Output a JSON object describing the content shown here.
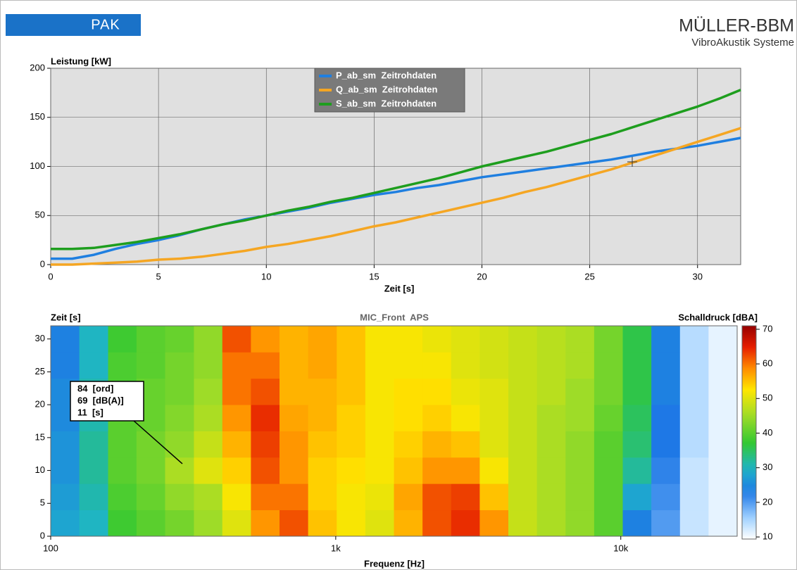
{
  "header": {
    "logo": "PAK",
    "brand": "MÜLLER-BBM",
    "subtitle": "VibroAkustik Systeme"
  },
  "chart_data": [
    {
      "type": "line",
      "ylabel": "Leistung [kW]",
      "xlabel": "Zeit [s]",
      "x": [
        0,
        1,
        2,
        3,
        4,
        5,
        6,
        7,
        8,
        9,
        10,
        11,
        12,
        13,
        14,
        15,
        16,
        17,
        18,
        19,
        20,
        21,
        22,
        23,
        24,
        25,
        26,
        27,
        28,
        29,
        30,
        31,
        32
      ],
      "series": [
        {
          "name": "P_ab_sm  Zeitrohdaten",
          "color": "#1f7fe0",
          "values": [
            6,
            6,
            10,
            16,
            21,
            25,
            30,
            36,
            41,
            46,
            50,
            54,
            58,
            63,
            67,
            71,
            74,
            78,
            81,
            85,
            89,
            92,
            95,
            98,
            101,
            104,
            107,
            111,
            115,
            118,
            121,
            125,
            129
          ]
        },
        {
          "name": "Q_ab_sm  Zeitrohdaten",
          "color": "#f5a623",
          "values": [
            0,
            0,
            1,
            2,
            3,
            5,
            6,
            8,
            11,
            14,
            18,
            21,
            25,
            29,
            34,
            39,
            43,
            48,
            53,
            58,
            63,
            68,
            74,
            79,
            85,
            91,
            97,
            104,
            111,
            118,
            125,
            132,
            139
          ]
        },
        {
          "name": "S_ab_sm  Zeitrohdaten",
          "color": "#1e9e1e",
          "values": [
            16,
            16,
            17,
            20,
            23,
            27,
            31,
            36,
            41,
            45,
            50,
            55,
            59,
            64,
            68,
            73,
            78,
            83,
            88,
            94,
            100,
            105,
            110,
            115,
            121,
            127,
            133,
            140,
            147,
            154,
            161,
            169,
            178
          ]
        }
      ],
      "xlim": [
        0,
        32
      ],
      "ylim": [
        0,
        200
      ],
      "xticks": [
        0,
        5,
        10,
        15,
        20,
        25,
        30
      ],
      "yticks": [
        0,
        50,
        100,
        150,
        200
      ],
      "grid": true,
      "legend": "top-center"
    },
    {
      "type": "heatmap",
      "title": "MIC_Front  APS",
      "ylabel": "Zeit [s]",
      "xlabel": "Frequenz [Hz]",
      "colorbar_label": "Schalldruck [dBA]",
      "xscale": "log",
      "xlim": [
        100,
        25600
      ],
      "ylim": [
        0,
        32
      ],
      "xticks": [
        100,
        {
          "value": 1000,
          "label": "1k"
        },
        {
          "value": 10000,
          "label": "10k"
        }
      ],
      "yticks": [
        0,
        5,
        10,
        15,
        20,
        25,
        30
      ],
      "xbins": [
        100,
        126,
        159,
        200,
        252,
        318,
        400,
        504,
        635,
        800,
        1008,
        1270,
        1600,
        2016,
        2540,
        3200,
        4032,
        5080,
        6400,
        8064,
        10160,
        12800,
        16130,
        20320,
        25600
      ],
      "ybins": [
        0,
        4,
        8,
        12,
        16,
        20,
        24,
        28,
        32
      ],
      "z": [
        [
          28,
          30,
          38,
          40,
          42,
          45,
          50,
          58,
          62,
          55,
          52,
          50,
          56,
          62,
          64,
          58,
          48,
          46,
          44,
          40,
          24,
          20,
          13,
          11
        ],
        [
          27,
          31,
          39,
          41,
          44,
          46,
          52,
          60,
          60,
          54,
          52,
          51,
          57,
          62,
          63,
          55,
          48,
          46,
          44,
          40,
          28,
          21,
          13,
          11
        ],
        [
          26,
          32,
          40,
          42,
          46,
          50,
          54,
          62,
          58,
          54,
          53,
          52,
          55,
          58,
          58,
          52,
          48,
          46,
          44,
          40,
          32,
          22,
          13,
          11
        ],
        [
          26,
          32,
          40,
          42,
          44,
          48,
          56,
          63,
          58,
          55,
          54,
          52,
          54,
          56,
          55,
          50,
          48,
          46,
          44,
          40,
          34,
          23,
          14,
          11
        ],
        [
          25,
          31,
          40,
          41,
          43,
          46,
          58,
          64,
          57,
          56,
          54,
          52,
          53,
          54,
          52,
          50,
          48,
          46,
          45,
          41,
          35,
          23,
          14,
          11
        ],
        [
          25,
          31,
          39,
          41,
          42,
          45,
          60,
          62,
          56,
          56,
          55,
          52,
          53,
          53,
          51,
          50,
          48,
          47,
          45,
          42,
          36,
          24,
          14,
          11
        ],
        [
          24,
          30,
          39,
          40,
          42,
          44,
          60,
          60,
          56,
          57,
          55,
          52,
          52,
          52,
          50,
          49,
          48,
          47,
          46,
          42,
          36,
          24,
          14,
          11
        ],
        [
          24,
          30,
          38,
          40,
          41,
          44,
          62,
          58,
          56,
          57,
          55,
          52,
          52,
          51,
          50,
          49,
          48,
          47,
          46,
          42,
          36,
          24,
          14,
          11
        ]
      ],
      "clim": [
        9.4,
        71
      ],
      "cticks": [
        10,
        20,
        30,
        40,
        50,
        60,
        70
      ],
      "annotation": [
        "84  [ord]",
        "69  [dB(A)]",
        "11  [s]"
      ]
    }
  ]
}
